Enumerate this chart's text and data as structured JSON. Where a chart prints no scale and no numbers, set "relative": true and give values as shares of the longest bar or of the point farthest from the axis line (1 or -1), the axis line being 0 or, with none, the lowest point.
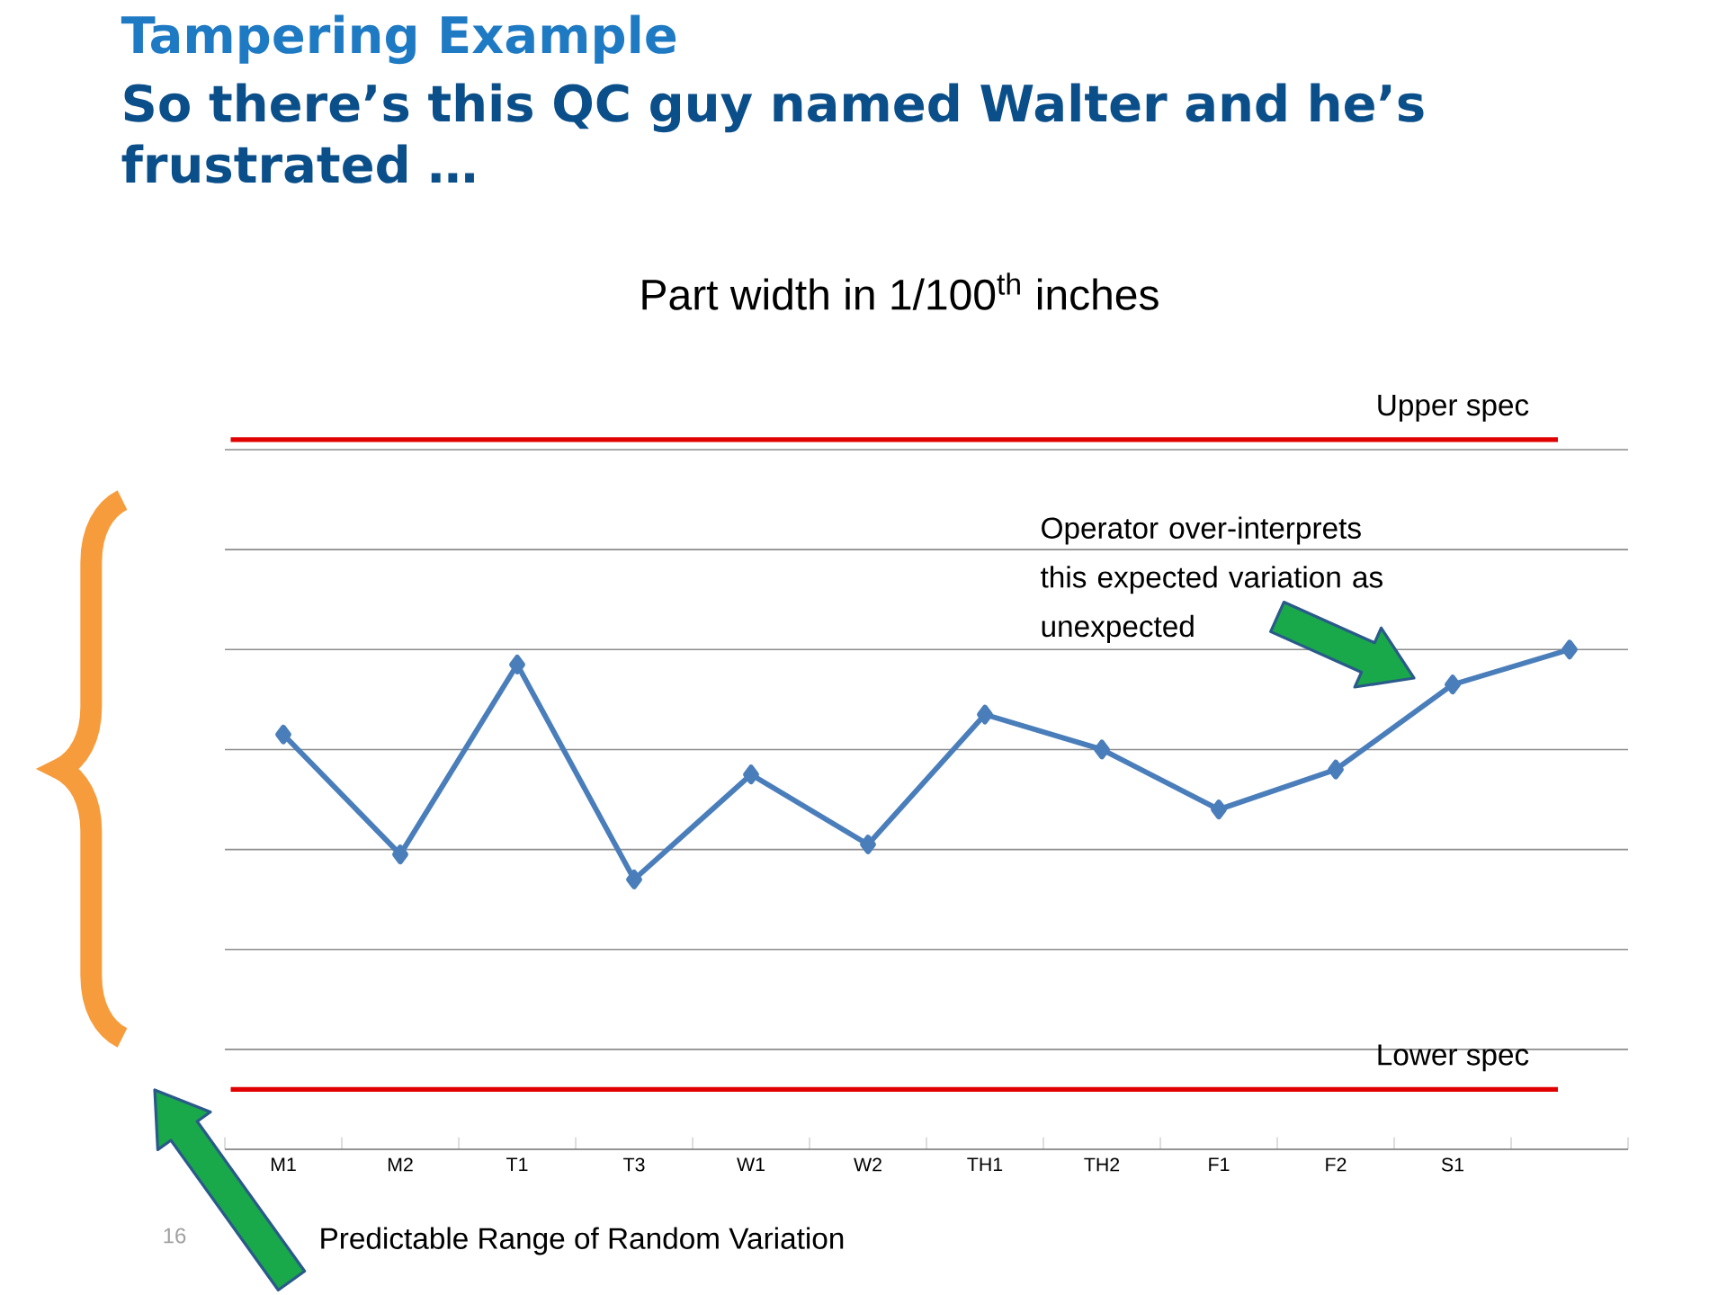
{
  "chart_data": {
    "type": "line",
    "title": "Tampering Example",
    "subtitle": "So there’s this QC guy named Walter and he’s frustrated …",
    "categories": [
      "M1",
      "M2",
      "T1",
      "T3",
      "W1",
      "W2",
      "TH1",
      "TH2",
      "F1",
      "F2",
      "S1",
      null
    ],
    "relative": true,
    "series": [
      {
        "color": "#4a7ebb",
        "values": [
          0.83,
          0.59,
          0.97,
          0.54,
          0.75,
          0.61,
          0.87,
          0.8,
          0.68,
          0.76,
          0.93,
          1
        ]
      }
    ],
    "marker": "diamond",
    "line_style": "solid",
    "grid": "y",
    "ref_lines": [
      {
        "axis": "y",
        "value": 1.42,
        "label": "Upper spec",
        "color": "#e00000"
      },
      {
        "axis": "y",
        "value": 0.12,
        "label": "Lower spec",
        "color": "#e00000"
      }
    ],
    "annotations": [
      "Part width in 1/100$^{th}$ inches",
      "Operator over-interprets this expected variation as unexpected",
      "Predictable Range of Random Variation",
      "16"
    ]
  }
}
